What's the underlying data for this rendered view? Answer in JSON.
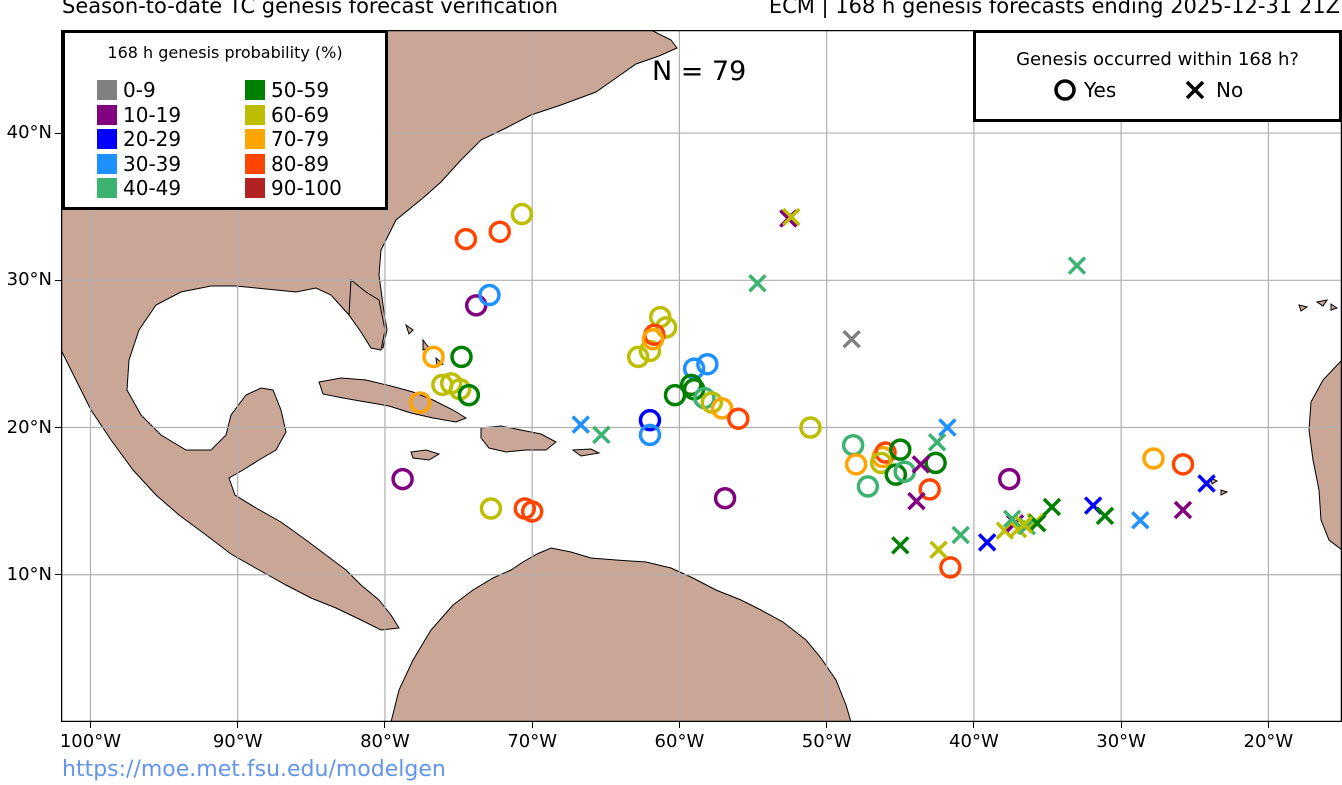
{
  "header": {
    "title_left": "Season-to-date TC genesis forecast verification",
    "title_right": "ECM | 168 h genesis forecasts ending 2025-12-31 21Z"
  },
  "footer": {
    "credit": "https://moe.met.fsu.edu/modelgen"
  },
  "map": {
    "extent": {
      "lon": [
        -102,
        -15
      ],
      "lat": [
        0,
        47
      ]
    },
    "land_color": "#C9A696",
    "ocean_color": "#ffffff",
    "lat_labels": [
      {
        "lat": 40,
        "label": "40°N"
      },
      {
        "lat": 30,
        "label": "30°N"
      },
      {
        "lat": 20,
        "label": "20°N"
      },
      {
        "lat": 10,
        "label": "10°N"
      }
    ],
    "lon_labels": [
      {
        "lon": -100,
        "label": "100°W"
      },
      {
        "lon": -90,
        "label": "90°W"
      },
      {
        "lon": -80,
        "label": "80°W"
      },
      {
        "lon": -70,
        "label": "70°W"
      },
      {
        "lon": -60,
        "label": "60°W"
      },
      {
        "lon": -50,
        "label": "50°W"
      },
      {
        "lon": -40,
        "label": "40°W"
      },
      {
        "lon": -30,
        "label": "30°W"
      },
      {
        "lon": -20,
        "label": "20°W"
      }
    ]
  },
  "n_label": "N = 79",
  "legend": {
    "title": "168 h genesis probability (%)",
    "bins": [
      {
        "label": "0-9",
        "color": "#808080"
      },
      {
        "label": "10-19",
        "color": "#800080"
      },
      {
        "label": "20-29",
        "color": "#0000FF"
      },
      {
        "label": "30-39",
        "color": "#1E90FF"
      },
      {
        "label": "40-49",
        "color": "#3CB371"
      },
      {
        "label": "50-59",
        "color": "#008000"
      },
      {
        "label": "60-69",
        "color": "#BDBE00"
      },
      {
        "label": "70-79",
        "color": "#FFA500"
      },
      {
        "label": "80-89",
        "color": "#FF4500"
      },
      {
        "label": "90-100",
        "color": "#B22222"
      }
    ]
  },
  "key": {
    "title": "Genesis occurred within 168 h?",
    "yes_label": "Yes",
    "no_label": "No"
  },
  "points": [
    {
      "lon": -74.5,
      "lat": 32.8,
      "bin": 8,
      "yes": true
    },
    {
      "lon": -72.2,
      "lat": 33.3,
      "bin": 8,
      "yes": true
    },
    {
      "lon": -70.7,
      "lat": 34.5,
      "bin": 6,
      "yes": true
    },
    {
      "lon": -73.8,
      "lat": 28.3,
      "bin": 1,
      "yes": true
    },
    {
      "lon": -72.9,
      "lat": 29.0,
      "bin": 3,
      "yes": true
    },
    {
      "lon": -76.7,
      "lat": 24.8,
      "bin": 7,
      "yes": true
    },
    {
      "lon": -74.8,
      "lat": 24.8,
      "bin": 5,
      "yes": true
    },
    {
      "lon": -76.1,
      "lat": 22.9,
      "bin": 6,
      "yes": true
    },
    {
      "lon": -75.5,
      "lat": 23.0,
      "bin": 6,
      "yes": true
    },
    {
      "lon": -74.9,
      "lat": 22.6,
      "bin": 6,
      "yes": true
    },
    {
      "lon": -74.3,
      "lat": 22.2,
      "bin": 5,
      "yes": true
    },
    {
      "lon": -77.6,
      "lat": 21.7,
      "bin": 7,
      "yes": true
    },
    {
      "lon": -78.8,
      "lat": 16.5,
      "bin": 1,
      "yes": true
    },
    {
      "lon": -72.8,
      "lat": 14.5,
      "bin": 6,
      "yes": true
    },
    {
      "lon": -70.5,
      "lat": 14.5,
      "bin": 8,
      "yes": true
    },
    {
      "lon": -70.0,
      "lat": 14.3,
      "bin": 8,
      "yes": true
    },
    {
      "lon": -62.0,
      "lat": 20.5,
      "bin": 2,
      "yes": true
    },
    {
      "lon": -62.0,
      "lat": 19.5,
      "bin": 3,
      "yes": true
    },
    {
      "lon": -62.8,
      "lat": 24.8,
      "bin": 6,
      "yes": true
    },
    {
      "lon": -62.0,
      "lat": 25.2,
      "bin": 6,
      "yes": true
    },
    {
      "lon": -61.3,
      "lat": 27.5,
      "bin": 6,
      "yes": true
    },
    {
      "lon": -60.9,
      "lat": 26.8,
      "bin": 6,
      "yes": true
    },
    {
      "lon": -61.7,
      "lat": 26.3,
      "bin": 8,
      "yes": true
    },
    {
      "lon": -61.8,
      "lat": 26.0,
      "bin": 7,
      "yes": true
    },
    {
      "lon": -59.0,
      "lat": 24.0,
      "bin": 3,
      "yes": true
    },
    {
      "lon": -58.1,
      "lat": 24.3,
      "bin": 3,
      "yes": true
    },
    {
      "lon": -59.2,
      "lat": 22.9,
      "bin": 5,
      "yes": true
    },
    {
      "lon": -59.0,
      "lat": 22.6,
      "bin": 5,
      "yes": true
    },
    {
      "lon": -60.3,
      "lat": 22.2,
      "bin": 5,
      "yes": true
    },
    {
      "lon": -58.3,
      "lat": 22.0,
      "bin": 4,
      "yes": true
    },
    {
      "lon": -57.8,
      "lat": 21.7,
      "bin": 6,
      "yes": true
    },
    {
      "lon": -57.1,
      "lat": 21.3,
      "bin": 7,
      "yes": true
    },
    {
      "lon": -56.0,
      "lat": 20.6,
      "bin": 8,
      "yes": true
    },
    {
      "lon": -56.9,
      "lat": 15.2,
      "bin": 1,
      "yes": true
    },
    {
      "lon": -51.1,
      "lat": 20.0,
      "bin": 6,
      "yes": true
    },
    {
      "lon": -48.2,
      "lat": 18.8,
      "bin": 4,
      "yes": true
    },
    {
      "lon": -48.0,
      "lat": 17.5,
      "bin": 7,
      "yes": true
    },
    {
      "lon": -47.2,
      "lat": 16.0,
      "bin": 4,
      "yes": true
    },
    {
      "lon": -46.2,
      "lat": 18.0,
      "bin": 7,
      "yes": true
    },
    {
      "lon": -46.0,
      "lat": 18.3,
      "bin": 8,
      "yes": true
    },
    {
      "lon": -46.3,
      "lat": 17.6,
      "bin": 6,
      "yes": true
    },
    {
      "lon": -45.0,
      "lat": 18.5,
      "bin": 5,
      "yes": true
    },
    {
      "lon": -45.3,
      "lat": 16.8,
      "bin": 5,
      "yes": true
    },
    {
      "lon": -44.7,
      "lat": 17.0,
      "bin": 4,
      "yes": true
    },
    {
      "lon": -42.6,
      "lat": 17.6,
      "bin": 5,
      "yes": true
    },
    {
      "lon": -43.0,
      "lat": 15.8,
      "bin": 8,
      "yes": true
    },
    {
      "lon": -41.6,
      "lat": 10.5,
      "bin": 8,
      "yes": true
    },
    {
      "lon": -37.6,
      "lat": 16.5,
      "bin": 1,
      "yes": true
    },
    {
      "lon": -27.8,
      "lat": 17.9,
      "bin": 7,
      "yes": true
    },
    {
      "lon": -25.8,
      "lat": 17.5,
      "bin": 8,
      "yes": true
    },
    {
      "lon": -52.6,
      "lat": 34.2,
      "bin": 1,
      "yes": false
    },
    {
      "lon": -52.4,
      "lat": 34.3,
      "bin": 6,
      "yes": false
    },
    {
      "lon": -54.7,
      "lat": 29.8,
      "bin": 4,
      "yes": false
    },
    {
      "lon": -33.0,
      "lat": 31.0,
      "bin": 4,
      "yes": false
    },
    {
      "lon": -48.3,
      "lat": 26.0,
      "bin": 0,
      "yes": false
    },
    {
      "lon": -66.7,
      "lat": 20.2,
      "bin": 3,
      "yes": false
    },
    {
      "lon": -65.3,
      "lat": 19.5,
      "bin": 4,
      "yes": false
    },
    {
      "lon": -41.8,
      "lat": 20.0,
      "bin": 3,
      "yes": false
    },
    {
      "lon": -42.5,
      "lat": 19.0,
      "bin": 4,
      "yes": false
    },
    {
      "lon": -43.6,
      "lat": 17.5,
      "bin": 1,
      "yes": false
    },
    {
      "lon": -43.9,
      "lat": 15.0,
      "bin": 1,
      "yes": false
    },
    {
      "lon": -45.0,
      "lat": 12.0,
      "bin": 5,
      "yes": false
    },
    {
      "lon": -42.4,
      "lat": 11.7,
      "bin": 6,
      "yes": false
    },
    {
      "lon": -40.9,
      "lat": 12.7,
      "bin": 4,
      "yes": false
    },
    {
      "lon": -39.1,
      "lat": 12.2,
      "bin": 2,
      "yes": false
    },
    {
      "lon": -37.9,
      "lat": 13.0,
      "bin": 6,
      "yes": false
    },
    {
      "lon": -37.2,
      "lat": 13.5,
      "bin": 1,
      "yes": false
    },
    {
      "lon": -37.0,
      "lat": 13.1,
      "bin": 6,
      "yes": false
    },
    {
      "lon": -36.4,
      "lat": 13.3,
      "bin": 4,
      "yes": false
    },
    {
      "lon": -35.8,
      "lat": 13.6,
      "bin": 6,
      "yes": false
    },
    {
      "lon": -35.7,
      "lat": 13.5,
      "bin": 5,
      "yes": false
    },
    {
      "lon": -34.7,
      "lat": 14.6,
      "bin": 5,
      "yes": false
    },
    {
      "lon": -31.9,
      "lat": 14.7,
      "bin": 2,
      "yes": false
    },
    {
      "lon": -31.1,
      "lat": 14.0,
      "bin": 5,
      "yes": false
    },
    {
      "lon": -28.7,
      "lat": 13.7,
      "bin": 3,
      "yes": false
    },
    {
      "lon": -25.8,
      "lat": 14.4,
      "bin": 1,
      "yes": false
    },
    {
      "lon": -24.2,
      "lat": 16.2,
      "bin": 2,
      "yes": false
    },
    {
      "lon": -37.4,
      "lat": 13.8,
      "bin": 4,
      "yes": false
    },
    {
      "lon": -36.6,
      "lat": 13.4,
      "bin": 6,
      "yes": false
    }
  ]
}
